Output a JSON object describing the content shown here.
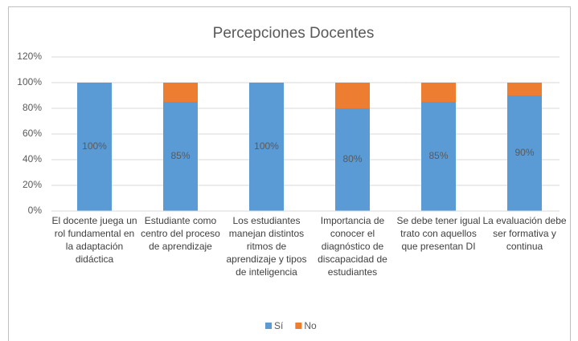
{
  "chart_data": {
    "type": "stacked_bar",
    "title": "Percepciones Docentes",
    "categories": [
      "El docente juega un rol fundamental en la adaptación didáctica",
      "Estudiante como centro del proceso de aprendizaje",
      "Los estudiantes manejan distintos ritmos de aprendizaje y tipos de inteligencia",
      "Importancia de conocer el diagnóstico de discapacidad de estudiantes",
      "Se debe tener igual trato con aquellos que presentan DI",
      "La evaluación debe ser formativa y continua"
    ],
    "series": [
      {
        "name": "Sí",
        "color": "#5b9bd5",
        "values": [
          100,
          85,
          100,
          80,
          85,
          90
        ],
        "value_labels": [
          "100%",
          "85%",
          "100%",
          "80%",
          "85%",
          "90%"
        ]
      },
      {
        "name": "No",
        "color": "#ed7d31",
        "values": [
          0,
          15,
          0,
          20,
          15,
          10
        ]
      }
    ],
    "ylim": [
      0,
      120
    ],
    "yticks": [
      {
        "value": 0,
        "label": "0%"
      },
      {
        "value": 20,
        "label": "20%"
      },
      {
        "value": 40,
        "label": "40%"
      },
      {
        "value": 60,
        "label": "60%"
      },
      {
        "value": 80,
        "label": "80%"
      },
      {
        "value": 100,
        "label": "100%"
      },
      {
        "value": 120,
        "label": "120%"
      }
    ],
    "grid": true,
    "legend": "bottom"
  }
}
